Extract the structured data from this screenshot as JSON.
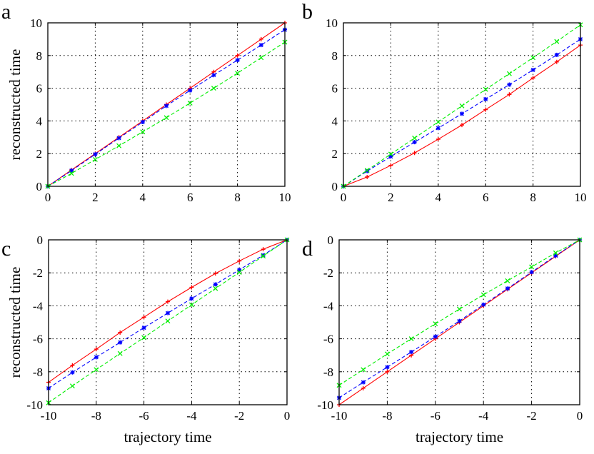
{
  "colors": {
    "red": "#ff0000",
    "blue": "#0000ff",
    "green": "#00ee00"
  },
  "chart_data": [
    {
      "panel_label": "a",
      "type": "line",
      "xlabel": "",
      "ylabel": "reconstructed time",
      "xlim": [
        0,
        10
      ],
      "ylim": [
        0,
        10
      ],
      "grid": true,
      "xticks": [
        "0",
        "2",
        "4",
        "6",
        "8",
        "10"
      ],
      "yticks": [
        "0",
        "2",
        "4",
        "6",
        "8",
        "10"
      ],
      "x": [
        0,
        1,
        2,
        3,
        4,
        5,
        6,
        7,
        8,
        9,
        10
      ],
      "series": [
        {
          "color": "red",
          "line": "solid",
          "marker": "+",
          "values": [
            0,
            1,
            2,
            3,
            4,
            5,
            6,
            7,
            8,
            9,
            10
          ]
        },
        {
          "color": "blue",
          "line": "dashed",
          "marker": "*",
          "values": [
            0,
            0.96,
            1.96,
            2.95,
            3.93,
            4.92,
            5.87,
            6.8,
            7.72,
            8.64,
            9.58
          ]
        },
        {
          "color": "green",
          "line": "dashed",
          "marker": "x",
          "values": [
            0,
            0.79,
            1.64,
            2.48,
            3.33,
            4.2,
            5.09,
            6.0,
            6.92,
            7.87,
            8.82
          ]
        }
      ]
    },
    {
      "panel_label": "b",
      "type": "line",
      "xlabel": "",
      "ylabel": "",
      "xlim": [
        0,
        10
      ],
      "ylim": [
        0,
        10
      ],
      "grid": true,
      "xticks": [
        "0",
        "2",
        "4",
        "6",
        "8",
        "10"
      ],
      "yticks": [
        "0",
        "2",
        "4",
        "6",
        "8",
        "10"
      ],
      "x": [
        0,
        1,
        2,
        3,
        4,
        5,
        6,
        7,
        8,
        9,
        10
      ],
      "series": [
        {
          "color": "red",
          "line": "solid",
          "marker": "+",
          "values": [
            0,
            0.57,
            1.28,
            2.04,
            2.88,
            3.75,
            4.69,
            5.62,
            6.63,
            7.61,
            8.64
          ]
        },
        {
          "color": "blue",
          "line": "dashed",
          "marker": "*",
          "values": [
            0,
            0.93,
            1.82,
            2.7,
            3.56,
            4.44,
            5.33,
            6.22,
            7.12,
            8.04,
            9.0
          ]
        },
        {
          "color": "green",
          "line": "dashed",
          "marker": "x",
          "values": [
            0,
            0.98,
            1.97,
            2.95,
            3.94,
            4.92,
            5.93,
            6.89,
            7.87,
            8.86,
            9.88
          ]
        }
      ]
    },
    {
      "panel_label": "c",
      "type": "line",
      "xlabel": "trajectory time",
      "ylabel": "reconstructed time",
      "xlim": [
        -10,
        0
      ],
      "ylim": [
        -10,
        0
      ],
      "grid": true,
      "xticks": [
        "-10",
        "-8",
        "-6",
        "-4",
        "-2",
        "0"
      ],
      "yticks": [
        "-10",
        "-8",
        "-6",
        "-4",
        "-2",
        "0"
      ],
      "x": [
        -10,
        -9,
        -8,
        -7,
        -6,
        -5,
        -4,
        -3,
        -2,
        -1,
        0
      ],
      "series": [
        {
          "color": "red",
          "line": "solid",
          "marker": "+",
          "values": [
            -8.64,
            -7.61,
            -6.63,
            -5.62,
            -4.69,
            -3.75,
            -2.88,
            -2.04,
            -1.28,
            -0.57,
            0
          ]
        },
        {
          "color": "blue",
          "line": "dashed",
          "marker": "*",
          "values": [
            -9.0,
            -8.04,
            -7.12,
            -6.22,
            -5.33,
            -4.44,
            -3.56,
            -2.7,
            -1.82,
            -0.93,
            0
          ]
        },
        {
          "color": "green",
          "line": "dashed",
          "marker": "x",
          "values": [
            -9.88,
            -8.86,
            -7.87,
            -6.89,
            -5.93,
            -4.92,
            -3.94,
            -2.95,
            -1.97,
            -0.98,
            0
          ]
        }
      ]
    },
    {
      "panel_label": "d",
      "type": "line",
      "xlabel": "trajectory time",
      "ylabel": "",
      "xlim": [
        -10,
        0
      ],
      "ylim": [
        -10,
        0
      ],
      "grid": true,
      "xticks": [
        "-10",
        "-8",
        "-6",
        "-4",
        "-2",
        "0"
      ],
      "yticks": [
        "-10",
        "-8",
        "-6",
        "-4",
        "-2",
        "0"
      ],
      "x": [
        -10,
        -9,
        -8,
        -7,
        -6,
        -5,
        -4,
        -3,
        -2,
        -1,
        0
      ],
      "series": [
        {
          "color": "red",
          "line": "solid",
          "marker": "+",
          "values": [
            -10,
            -9,
            -8,
            -7,
            -6,
            -5,
            -4,
            -3,
            -2,
            -1,
            0
          ]
        },
        {
          "color": "blue",
          "line": "dashed",
          "marker": "*",
          "values": [
            -9.58,
            -8.64,
            -7.72,
            -6.8,
            -5.87,
            -4.92,
            -3.93,
            -2.95,
            -1.96,
            -0.96,
            0
          ]
        },
        {
          "color": "green",
          "line": "dashed",
          "marker": "x",
          "values": [
            -8.82,
            -7.87,
            -6.92,
            -6.0,
            -5.09,
            -4.2,
            -3.33,
            -2.48,
            -1.64,
            -0.79,
            0
          ]
        }
      ]
    }
  ]
}
